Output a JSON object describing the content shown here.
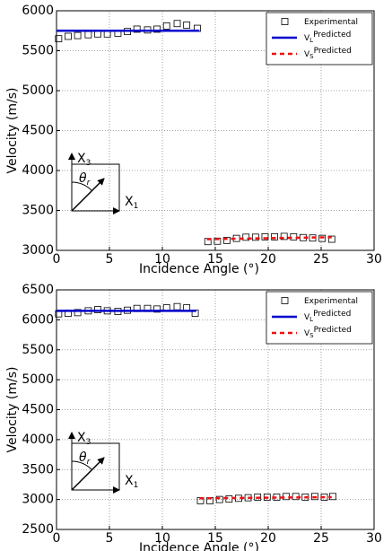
{
  "chart_data": [
    {
      "type": "scatter",
      "xlabel": "Incidence Angle (°)",
      "ylabel": "Velocity (m/s)",
      "xlim": [
        0,
        30
      ],
      "xticks": [
        0,
        5,
        10,
        15,
        20,
        25,
        30
      ],
      "ylim": [
        3000,
        6000
      ],
      "yticks": [
        3000,
        3500,
        4000,
        4500,
        5000,
        5500,
        6000
      ],
      "grid": true,
      "legend": "upper right",
      "inset": [
        {
          "text": "X",
          "sub": "3"
        },
        {
          "text": "θ",
          "sub": "r"
        },
        {
          "text": "X",
          "sub": "1"
        }
      ],
      "series": [
        {
          "name": "Experimental",
          "marker": "square",
          "color": "#000000",
          "x": [
            0.2,
            1.1,
            2.0,
            3.0,
            3.9,
            4.8,
            5.8,
            6.7,
            7.6,
            8.6,
            9.5,
            10.4,
            11.4,
            12.3,
            13.3,
            14.3,
            15.2,
            16.1,
            17.0,
            17.9,
            18.8,
            19.7,
            20.6,
            21.5,
            22.4,
            23.3,
            24.2,
            25.1,
            26.0
          ],
          "values": [
            5650,
            5680,
            5690,
            5700,
            5710,
            5710,
            5720,
            5740,
            5770,
            5760,
            5770,
            5810,
            5840,
            5820,
            5780,
            3110,
            3115,
            3125,
            3150,
            3165,
            3165,
            3170,
            3170,
            3175,
            3170,
            3160,
            3155,
            3150,
            3140
          ]
        },
        {
          "name": "V",
          "subscript": "L",
          "superscript": "Predicted",
          "line": "solid",
          "color": "#0000cc",
          "x": [
            0,
            13.5
          ],
          "values": [
            5750,
            5750
          ]
        },
        {
          "name": "V",
          "subscript": "S",
          "superscript": "Predicted",
          "line": "dashed",
          "color": "#ee1111",
          "x": [
            14.2,
            26
          ],
          "values": [
            3140,
            3165
          ]
        }
      ]
    },
    {
      "type": "scatter",
      "xlabel": "Incidence Angle (°)",
      "ylabel": "Velocity (m/s)",
      "xlim": [
        0,
        30
      ],
      "xticks": [
        0,
        5,
        10,
        15,
        20,
        25,
        30
      ],
      "ylim": [
        2500,
        6500
      ],
      "yticks": [
        2500,
        3000,
        3500,
        4000,
        4500,
        5000,
        5500,
        6000,
        6500
      ],
      "grid": true,
      "legend": "upper right",
      "inset": [
        {
          "text": "X",
          "sub": "3"
        },
        {
          "text": "θ",
          "sub": "r"
        },
        {
          "text": "X",
          "sub": "1"
        }
      ],
      "series": [
        {
          "name": "Experimental",
          "marker": "square",
          "color": "#000000",
          "x": [
            0.2,
            1.1,
            2.0,
            3.0,
            3.9,
            4.8,
            5.8,
            6.7,
            7.6,
            8.6,
            9.5,
            10.4,
            11.4,
            12.3,
            13.1,
            13.6,
            14.5,
            15.4,
            16.3,
            17.2,
            18.1,
            19.0,
            19.9,
            20.8,
            21.7,
            22.6,
            23.5,
            24.4,
            25.3,
            26.1
          ],
          "values": [
            6100,
            6110,
            6120,
            6150,
            6170,
            6150,
            6140,
            6160,
            6190,
            6190,
            6180,
            6200,
            6220,
            6200,
            6110,
            2980,
            2980,
            3000,
            3010,
            3020,
            3030,
            3040,
            3040,
            3040,
            3050,
            3050,
            3040,
            3050,
            3040,
            3050
          ]
        },
        {
          "name": "V",
          "subscript": "L",
          "superscript": "Predicted",
          "line": "solid",
          "color": "#0000cc",
          "x": [
            0,
            13.2
          ],
          "values": [
            6150,
            6150
          ]
        },
        {
          "name": "V",
          "subscript": "S",
          "superscript": "Predicted",
          "line": "dashed",
          "color": "#ee1111",
          "x": [
            13.5,
            26
          ],
          "values": [
            3020,
            3040
          ]
        }
      ]
    }
  ]
}
